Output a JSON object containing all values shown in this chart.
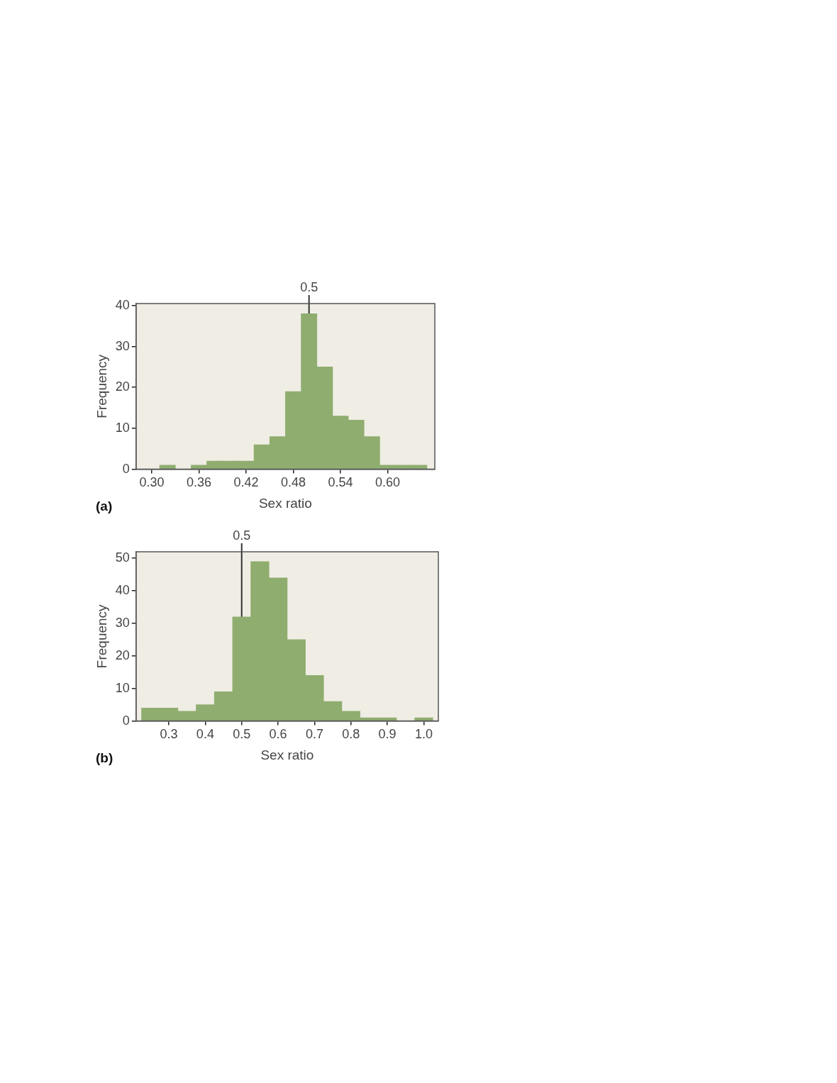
{
  "chart_data": [
    {
      "type": "histogram",
      "xlabel": "Sex ratio",
      "ylabel": "Frequency",
      "bins": [
        0.31,
        0.33,
        0.35,
        0.37,
        0.39,
        0.41,
        0.43,
        0.45,
        0.47,
        0.49,
        0.51,
        0.53,
        0.55,
        0.57,
        0.59,
        0.61,
        0.63,
        0.65
      ],
      "values": [
        1,
        0,
        1,
        2,
        2,
        2,
        6,
        8,
        19,
        38,
        25,
        13,
        12,
        8,
        1,
        1,
        1
      ],
      "color": "#8fad6f",
      "xlim": [
        0.28,
        0.66
      ],
      "xticks": [
        {
          "value": 0.3,
          "label": "0.30"
        },
        0.36,
        0.42,
        0.48,
        0.54,
        {
          "value": 0.6,
          "label": "0.60"
        }
      ],
      "ylim": [
        0,
        40.5
      ],
      "yticks": [
        0,
        10,
        20,
        30,
        40
      ],
      "grid": false,
      "legend": false,
      "ref_lines": [
        {
          "axis": "x",
          "value": 0.5,
          "label": "0.5",
          "color": "#333333"
        }
      ],
      "annotations": [
        "(a)"
      ]
    },
    {
      "type": "histogram",
      "xlabel": "Sex ratio",
      "ylabel": "Frequency",
      "bins": [
        0.225,
        0.275,
        0.325,
        0.375,
        0.425,
        0.475,
        0.525,
        0.575,
        0.625,
        0.675,
        0.725,
        0.775,
        0.825,
        0.875,
        0.925,
        0.975,
        1.025
      ],
      "values": [
        4,
        4,
        3,
        5,
        9,
        32,
        49,
        44,
        25,
        14,
        6,
        3,
        1,
        1,
        0,
        1
      ],
      "color": "#8fad6f",
      "xlim": [
        0.21,
        1.04
      ],
      "xticks": [
        0.3,
        0.4,
        0.5,
        0.6,
        0.7,
        0.8,
        0.9,
        {
          "value": 1,
          "label": "1.0"
        }
      ],
      "ylim": [
        0,
        52
      ],
      "yticks": [
        0,
        10,
        20,
        30,
        40,
        50
      ],
      "grid": false,
      "legend": false,
      "ref_lines": [
        {
          "axis": "x",
          "value": 0.5,
          "label": "0.5",
          "color": "#333333"
        }
      ],
      "annotations": [
        "(b)"
      ]
    }
  ]
}
